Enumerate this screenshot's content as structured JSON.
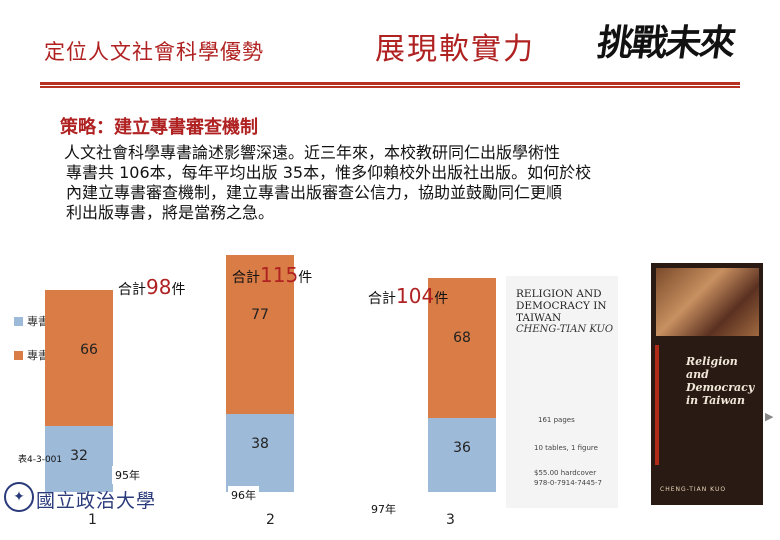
{
  "header": {
    "left_title": "定位人文社會科學優勢",
    "right_title": "展現軟實力",
    "calligraphy": "挑戰未來"
  },
  "strategy_heading": "策略：建立專書審查機制",
  "body_lines": [
    "人文社會科學專書論述影響深遠。近三年來，本校教研同仁出版學術性",
    "專書共 106本，每年平均出版 35本，惟多仰賴校外出版社出版。如何於校",
    "內建立專書審查機制，建立專書出版審查公信力，協助並鼓勵同仁更順",
    "利出版專書，將是當務之急。"
  ],
  "colors": {
    "series_book": "#9dbad8",
    "series_chapter": "#d97c46",
    "accent_red": "#b02222"
  },
  "chart_data": {
    "type": "bar",
    "stacked": true,
    "categories": [
      "1",
      "2",
      "3"
    ],
    "year_tags": [
      "95年",
      "96年",
      "97年"
    ],
    "series": [
      {
        "name": "專書",
        "values": [
          32,
          38,
          36
        ]
      },
      {
        "name": "專書篇章",
        "values": [
          66,
          77,
          68
        ]
      }
    ],
    "totals": [
      {
        "prefix": "合計",
        "value": "98",
        "suffix": "件"
      },
      {
        "prefix": "合計",
        "value": "115",
        "suffix": "件"
      },
      {
        "prefix": "合計",
        "value": "104",
        "suffix": "件"
      }
    ],
    "legend_position": "left",
    "table_ref": "表4-3-001"
  },
  "book": {
    "title": "RELIGION AND DEMOCRACY IN TAIWAN",
    "author": "CHENG-TIAN KUO",
    "pages": "161 pages",
    "tables": "10 tables, 1 figure",
    "price_lines": [
      "$55.00 hardcover",
      "978-0-7914-7445-7"
    ]
  },
  "cover": {
    "title": "Religion and Democracy in Taiwan",
    "author": "CHENG-TIAN KUO"
  },
  "logo": {
    "text": "國立政治大學",
    "seal_glyph": "✦"
  },
  "nav": {
    "next_arrow": "▶"
  }
}
